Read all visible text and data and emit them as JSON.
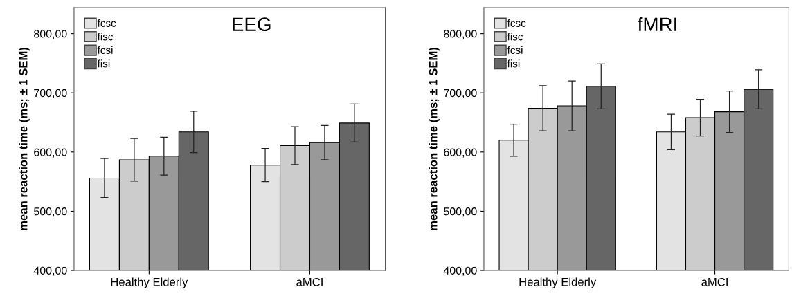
{
  "chart_data": [
    {
      "type": "bar",
      "title": "EEG",
      "ylabel": "mean reaction time (ms; ± 1 SEM)",
      "categories": [
        "Healthy Elderly",
        "aMCI"
      ],
      "ylim": [
        400,
        844
      ],
      "yticks": [
        {
          "value": 400,
          "label": "400,00"
        },
        {
          "value": 500,
          "label": "500,00"
        },
        {
          "value": 600,
          "label": "600,00"
        },
        {
          "value": 700,
          "label": "700,00"
        },
        {
          "value": 800,
          "label": "800,00"
        }
      ],
      "legend": "top left",
      "grid": false,
      "series": [
        {
          "name": "fcsc",
          "color": "#e3e3e3",
          "values": [
            556,
            578
          ],
          "errors": [
            33,
            28
          ]
        },
        {
          "name": "fisc",
          "color": "#cccccc",
          "values": [
            587,
            611
          ],
          "errors": [
            36,
            32
          ]
        },
        {
          "name": "fcsi",
          "color": "#999999",
          "values": [
            593,
            616
          ],
          "errors": [
            32,
            29
          ]
        },
        {
          "name": "fisi",
          "color": "#666666",
          "values": [
            634,
            649
          ],
          "errors": [
            35,
            32
          ]
        }
      ]
    },
    {
      "type": "bar",
      "title": "fMRI",
      "ylabel": "mean reaction time (ms; ± 1 SEM)",
      "categories": [
        "Healthy Elderly",
        "aMCI"
      ],
      "ylim": [
        400,
        844
      ],
      "yticks": [
        {
          "value": 400,
          "label": "400,00"
        },
        {
          "value": 500,
          "label": "500,00"
        },
        {
          "value": 600,
          "label": "600,00"
        },
        {
          "value": 700,
          "label": "700,00"
        },
        {
          "value": 800,
          "label": "800,00"
        }
      ],
      "legend": "top left",
      "grid": false,
      "series": [
        {
          "name": "fcsc",
          "color": "#e3e3e3",
          "values": [
            620,
            634
          ],
          "errors": [
            27,
            30
          ]
        },
        {
          "name": "fisc",
          "color": "#cccccc",
          "values": [
            674,
            658
          ],
          "errors": [
            38,
            31
          ]
        },
        {
          "name": "fcsi",
          "color": "#999999",
          "values": [
            678,
            668
          ],
          "errors": [
            42,
            35
          ]
        },
        {
          "name": "fisi",
          "color": "#666666",
          "values": [
            711,
            706
          ],
          "errors": [
            38,
            33
          ]
        }
      ]
    }
  ]
}
